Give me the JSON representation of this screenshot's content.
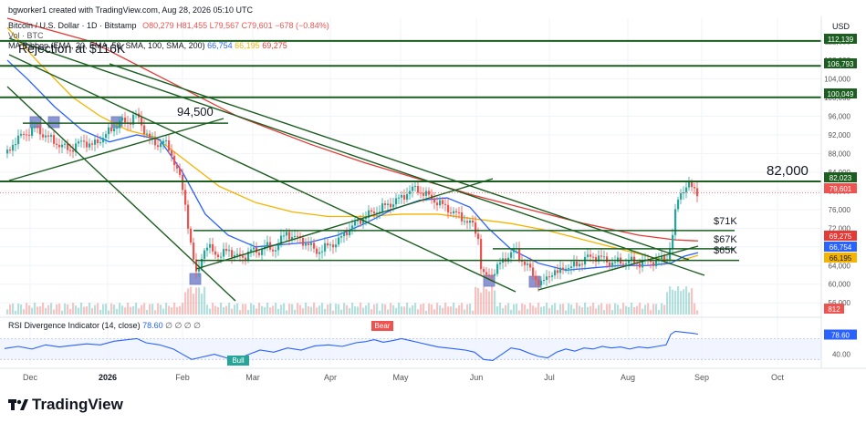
{
  "header": {
    "created_by": "bgworker1 created with TradingView.com, Aug 28, 2026 05:10 UTC",
    "symbol_line": "Bitcoin / U.S. Dollar · 1D · Bitstamp",
    "ohlc": "O80,279 H81,455 L79,567 C79,601 −678 (−0.84%)",
    "volume_line": "Vol · BTC",
    "ribbon_prefix": "MA Ribbon (EMA, 20, EMA, 50, SMA, 100, SMA, 200)",
    "ribbon_values": [
      "66,754",
      "66,195",
      "69,275"
    ],
    "currency": "USD",
    "rsi_line": "RSI Divergence Indicator (14, close)",
    "rsi_value": "78.60",
    "rsi_extra": "∅ ∅ ∅ ∅",
    "brand": "TradingView"
  },
  "colors": {
    "up": "#26a69a",
    "down": "#ef5350",
    "ema20": "#2962ff",
    "ema50": "#f5b400",
    "sma200": "#e53935",
    "trendline": "#1b5e20",
    "rsi": "#2962ff",
    "box": "#5c6bc0"
  },
  "chart_data": {
    "type": "candlestick",
    "symbol": "Bitcoin / U.S. Dollar",
    "interval": "1D",
    "exchange": "Bitstamp",
    "x_ticks": [
      "Dec",
      "2026",
      "Feb",
      "Mar",
      "Apr",
      "May",
      "Jun",
      "Jul",
      "Aug",
      "Sep",
      "Oct"
    ],
    "y_ticks": [
      56000,
      60000,
      64000,
      68000,
      72000,
      76000,
      80000,
      84000,
      88000,
      92000,
      96000,
      100000,
      104000,
      108000,
      112000
    ],
    "y_tick_labels": [
      "56,000",
      "60,000",
      "64,000",
      "68,000",
      "72,000",
      "76,000",
      "80,000",
      "84,000",
      "88,000",
      "92,000",
      "96,000",
      "100,000",
      "104,000",
      "108,000",
      "112,000"
    ],
    "ylim": [
      53500,
      117000
    ],
    "last_close": 79601,
    "price_labels": [
      {
        "value": 112139,
        "text": "112,139",
        "kind": "level"
      },
      {
        "value": 106793,
        "text": "106,793",
        "kind": "level"
      },
      {
        "value": 100049,
        "text": "100,049",
        "kind": "level"
      },
      {
        "value": 82023,
        "text": "82,023",
        "kind": "level"
      },
      {
        "value": 79601,
        "text": "79,601",
        "kind": "price"
      },
      {
        "value": 69275,
        "text": "69,275",
        "kind": "sma200"
      },
      {
        "value": 66754,
        "text": "66,754",
        "kind": "ema20"
      },
      {
        "value": 66195,
        "text": "66,195",
        "kind": "ema50"
      }
    ],
    "volume_label": "812",
    "annotations": [
      {
        "text": "Rejection at $116K"
      },
      {
        "text": "94,500"
      },
      {
        "text": "82,000"
      },
      {
        "text": "$71K"
      },
      {
        "text": "$67K"
      },
      {
        "text": "$65K"
      }
    ],
    "rsi": {
      "name": "RSI Divergence Indicator",
      "period": 14,
      "last": 78.6,
      "level_label": "40.00",
      "bear_label": "Bear",
      "bull_label": "Bull",
      "points": [
        [
          5,
          51
        ],
        [
          20,
          55
        ],
        [
          35,
          50
        ],
        [
          50,
          58
        ],
        [
          65,
          54
        ],
        [
          80,
          57
        ],
        [
          95,
          60
        ],
        [
          110,
          58
        ],
        [
          125,
          65
        ],
        [
          140,
          68
        ],
        [
          150,
          70
        ],
        [
          160,
          62
        ],
        [
          175,
          58
        ],
        [
          190,
          50
        ],
        [
          200,
          40
        ],
        [
          210,
          30
        ],
        [
          220,
          34
        ],
        [
          235,
          40
        ],
        [
          250,
          32
        ],
        [
          260,
          30
        ],
        [
          270,
          38
        ],
        [
          285,
          48
        ],
        [
          300,
          44
        ],
        [
          315,
          52
        ],
        [
          330,
          48
        ],
        [
          345,
          56
        ],
        [
          360,
          58
        ],
        [
          375,
          55
        ],
        [
          390,
          62
        ],
        [
          400,
          64
        ],
        [
          410,
          68
        ],
        [
          420,
          63
        ],
        [
          430,
          66
        ],
        [
          440,
          70
        ],
        [
          450,
          66
        ],
        [
          460,
          62
        ],
        [
          470,
          58
        ],
        [
          480,
          54
        ],
        [
          490,
          52
        ],
        [
          500,
          50
        ],
        [
          510,
          48
        ],
        [
          520,
          44
        ],
        [
          530,
          30
        ],
        [
          540,
          28
        ],
        [
          550,
          40
        ],
        [
          560,
          52
        ],
        [
          570,
          49
        ],
        [
          580,
          42
        ],
        [
          590,
          36
        ],
        [
          600,
          33
        ],
        [
          610,
          44
        ],
        [
          620,
          50
        ],
        [
          630,
          46
        ],
        [
          640,
          52
        ],
        [
          650,
          50
        ],
        [
          660,
          55
        ],
        [
          670,
          52
        ],
        [
          680,
          54
        ],
        [
          690,
          50
        ],
        [
          700,
          54
        ],
        [
          710,
          52
        ],
        [
          720,
          55
        ],
        [
          730,
          58
        ],
        [
          735,
          78
        ],
        [
          740,
          84
        ],
        [
          750,
          82
        ],
        [
          760,
          80
        ],
        [
          765,
          78.6
        ]
      ]
    },
    "ohlc_path": [
      [
        8,
        88000
      ],
      [
        15,
        90500
      ],
      [
        22,
        91500
      ],
      [
        30,
        92500
      ],
      [
        38,
        93500
      ],
      [
        45,
        92500
      ],
      [
        52,
        91500
      ],
      [
        60,
        90500
      ],
      [
        68,
        89500
      ],
      [
        76,
        88800
      ],
      [
        84,
        89800
      ],
      [
        92,
        90800
      ],
      [
        100,
        89500
      ],
      [
        108,
        90800
      ],
      [
        116,
        92000
      ],
      [
        124,
        93500
      ],
      [
        132,
        95000
      ],
      [
        140,
        94500
      ],
      [
        148,
        96500
      ],
      [
        154,
        94500
      ],
      [
        160,
        92500
      ],
      [
        166,
        90500
      ],
      [
        172,
        89800
      ],
      [
        178,
        91000
      ],
      [
        186,
        88500
      ],
      [
        192,
        86000
      ],
      [
        198,
        82000
      ],
      [
        204,
        76000
      ],
      [
        208,
        70000
      ],
      [
        212,
        65000
      ],
      [
        216,
        61000
      ],
      [
        220,
        66000
      ],
      [
        226,
        68000
      ],
      [
        234,
        67000
      ],
      [
        242,
        66000
      ],
      [
        250,
        67500
      ],
      [
        258,
        66000
      ],
      [
        266,
        65500
      ],
      [
        274,
        67500
      ],
      [
        282,
        66500
      ],
      [
        290,
        68500
      ],
      [
        298,
        67000
      ],
      [
        306,
        69000
      ],
      [
        314,
        71000
      ],
      [
        322,
        70000
      ],
      [
        330,
        69500
      ],
      [
        338,
        68500
      ],
      [
        346,
        67000
      ],
      [
        354,
        67500
      ],
      [
        362,
        68500
      ],
      [
        370,
        69000
      ],
      [
        380,
        71500
      ],
      [
        390,
        73000
      ],
      [
        400,
        74500
      ],
      [
        410,
        75500
      ],
      [
        420,
        76500
      ],
      [
        430,
        77500
      ],
      [
        440,
        78500
      ],
      [
        448,
        80000
      ],
      [
        456,
        80500
      ],
      [
        464,
        79500
      ],
      [
        472,
        78500
      ],
      [
        480,
        77500
      ],
      [
        488,
        76500
      ],
      [
        496,
        75500
      ],
      [
        504,
        74500
      ],
      [
        512,
        73500
      ],
      [
        518,
        72500
      ],
      [
        524,
        70000
      ],
      [
        528,
        62000
      ],
      [
        534,
        61500
      ],
      [
        540,
        62500
      ],
      [
        546,
        64000
      ],
      [
        552,
        65000
      ],
      [
        558,
        66500
      ],
      [
        564,
        67500
      ],
      [
        570,
        65500
      ],
      [
        576,
        64500
      ],
      [
        582,
        62500
      ],
      [
        588,
        61000
      ],
      [
        594,
        60000
      ],
      [
        600,
        61500
      ],
      [
        606,
        63000
      ],
      [
        612,
        62000
      ],
      [
        618,
        64000
      ],
      [
        626,
        63500
      ],
      [
        634,
        64500
      ],
      [
        642,
        65500
      ],
      [
        650,
        66000
      ],
      [
        660,
        65500
      ],
      [
        670,
        64500
      ],
      [
        680,
        64800
      ],
      [
        690,
        65000
      ],
      [
        700,
        64500
      ],
      [
        710,
        64800
      ],
      [
        720,
        65000
      ],
      [
        730,
        65500
      ],
      [
        736,
        69000
      ],
      [
        740,
        75000
      ],
      [
        744,
        79500
      ],
      [
        750,
        80500
      ],
      [
        756,
        81000
      ],
      [
        762,
        80500
      ],
      [
        765,
        79601
      ]
    ]
  }
}
